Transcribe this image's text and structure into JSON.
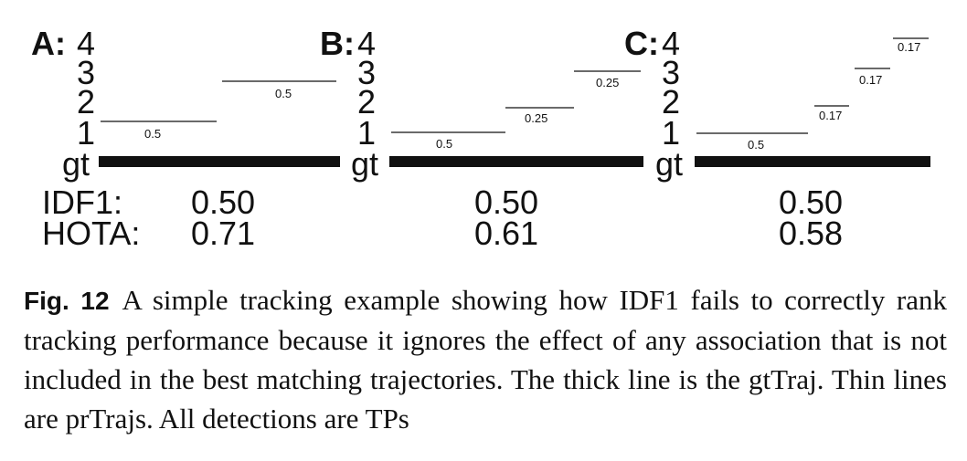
{
  "panels": [
    {
      "letter": "A:",
      "gt_label": "gt",
      "yticks": [
        "4",
        "3",
        "2",
        "1"
      ],
      "pr_labels": [
        "0.5",
        "0.5"
      ],
      "idf1": "0.50",
      "hota": "0.71"
    },
    {
      "letter": "B:",
      "gt_label": "gt",
      "yticks": [
        "4",
        "3",
        "2",
        "1"
      ],
      "pr_labels": [
        "0.5",
        "0.25",
        "0.25"
      ],
      "idf1": "0.50",
      "hota": "0.61"
    },
    {
      "letter": "C:",
      "gt_label": "gt",
      "yticks": [
        "4",
        "3",
        "2",
        "1"
      ],
      "pr_labels": [
        "0.5",
        "0.17",
        "0.17",
        "0.17"
      ],
      "idf1": "0.50",
      "hota": "0.58"
    }
  ],
  "metric_labels": {
    "idf1": "IDF1:",
    "hota": "HOTA:"
  },
  "caption": {
    "label": "Fig. 12",
    "text": "A simple tracking example showing how IDF1 fails to correctly rank tracking performance because it ignores the effect of any association that is not included in the best matching trajectories. The thick line is the gtTraj. Thin lines are prTrajs. All detections are TPs"
  }
}
